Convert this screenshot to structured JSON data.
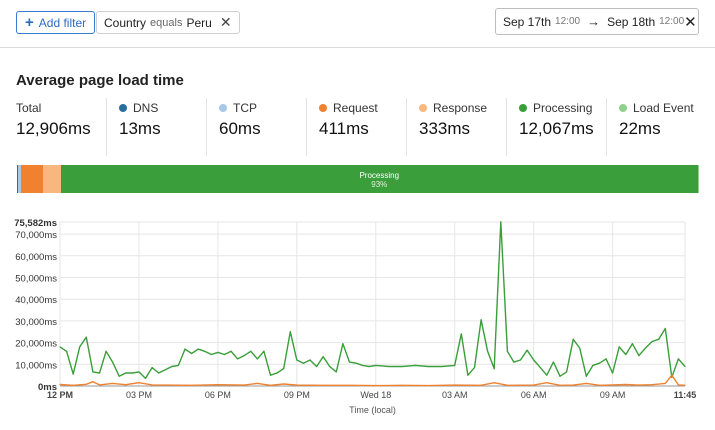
{
  "toolbar": {
    "add_filter_label": "Add filter",
    "filter_chip": {
      "field": "Country",
      "operator": "equals",
      "value": "Peru"
    },
    "date_range": {
      "start_date": "Sep 17th",
      "start_time": "12:00",
      "end_date": "Sep 18th",
      "end_time": "12:00"
    }
  },
  "section": {
    "title": "Average page load time"
  },
  "metrics": [
    {
      "label": "Total",
      "value": "12,906ms",
      "color": ""
    },
    {
      "label": "DNS",
      "value": "13ms",
      "color": "#2c6e9b"
    },
    {
      "label": "TCP",
      "value": "60ms",
      "color": "#a9c8e8"
    },
    {
      "label": "Request",
      "value": "411ms",
      "color": "#f0822f"
    },
    {
      "label": "Response",
      "value": "333ms",
      "color": "#f8b77f"
    },
    {
      "label": "Processing",
      "value": "12,067ms",
      "color": "#3a9e3a"
    },
    {
      "label": "Load Event",
      "value": "22ms",
      "color": "#8fd18a"
    }
  ],
  "breakdown_bar": {
    "segments": [
      {
        "name": "DNS",
        "fraction": 0.001,
        "color": "#2c6e9b"
      },
      {
        "name": "TCP",
        "fraction": 0.005,
        "color": "#a9c8e8"
      },
      {
        "name": "Request",
        "fraction": 0.032,
        "color": "#f0822f"
      },
      {
        "name": "Response",
        "fraction": 0.026,
        "color": "#f8b77f"
      },
      {
        "name": "Processing",
        "fraction": 0.935,
        "color": "#3a9e3a",
        "label": "Processing",
        "percent": "93%"
      },
      {
        "name": "Load Event",
        "fraction": 0.002,
        "color": "#8fd18a"
      }
    ]
  },
  "chart_data": {
    "type": "line",
    "xlabel": "Time (local)",
    "ylabel": "",
    "ylim": [
      0,
      75582
    ],
    "y_ticks": [
      "0ms",
      "10,000ms",
      "20,000ms",
      "30,000ms",
      "40,000ms",
      "50,000ms",
      "60,000ms",
      "70,000ms",
      "75,582ms"
    ],
    "y_tick_values": [
      0,
      10000,
      20000,
      30000,
      40000,
      50000,
      60000,
      70000,
      75582
    ],
    "x_ticks": [
      "12 PM",
      "03 PM",
      "06 PM",
      "09 PM",
      "Wed 18",
      "03 AM",
      "06 AM",
      "09 AM",
      "11:45"
    ],
    "x_tick_hours": [
      0,
      3,
      6,
      9,
      12,
      15,
      18,
      21,
      23.75
    ],
    "x_range_hours": [
      0,
      23.75
    ],
    "grid": true,
    "series": [
      {
        "color": "#3a9e3a",
        "x_hours": [
          0,
          0.25,
          0.5,
          0.75,
          1.0,
          1.25,
          1.5,
          1.75,
          2.0,
          2.25,
          2.5,
          2.75,
          3.0,
          3.25,
          3.5,
          3.75,
          4.0,
          4.25,
          4.5,
          4.75,
          5.0,
          5.25,
          5.5,
          5.75,
          6.0,
          6.25,
          6.5,
          6.75,
          7.0,
          7.25,
          7.5,
          7.75,
          8.0,
          8.25,
          8.5,
          8.75,
          9.0,
          9.25,
          9.5,
          9.75,
          10.0,
          10.25,
          10.5,
          10.75,
          11.0,
          11.25,
          11.5,
          11.75,
          12.0,
          12.5,
          13.0,
          13.5,
          14.0,
          14.5,
          15.0,
          15.25,
          15.5,
          15.75,
          16.0,
          16.25,
          16.5,
          16.75,
          17.0,
          17.25,
          17.5,
          17.75,
          18.0,
          18.25,
          18.5,
          18.75,
          19.0,
          19.25,
          19.5,
          19.75,
          20.0,
          20.25,
          20.5,
          20.75,
          21.0,
          21.25,
          21.5,
          21.75,
          22.0,
          22.25,
          22.5,
          22.75,
          23.0,
          23.25,
          23.5,
          23.75
        ],
        "values": [
          18000,
          16000,
          5500,
          18000,
          22500,
          6500,
          6000,
          16000,
          11000,
          4500,
          6000,
          6000,
          6500,
          3500,
          8500,
          6000,
          7500,
          9000,
          9500,
          17000,
          15000,
          17000,
          16000,
          14500,
          15500,
          14500,
          16000,
          12500,
          14000,
          16000,
          12500,
          16000,
          5000,
          6000,
          8000,
          25000,
          12000,
          10500,
          12000,
          9000,
          13500,
          9000,
          6500,
          19500,
          11000,
          10500,
          9500,
          9000,
          9500,
          9000,
          9000,
          9500,
          9000,
          9000,
          9500,
          24000,
          5000,
          8500,
          30500,
          16000,
          8000,
          75582,
          16000,
          11000,
          12000,
          16500,
          12000,
          8500,
          5000,
          11000,
          4500,
          6500,
          21500,
          17500,
          4500,
          9500,
          10500,
          12500,
          6000,
          18000,
          14500,
          19500,
          14000,
          17500,
          20500,
          21500,
          26500,
          4000,
          12500,
          9000
        ]
      },
      {
        "color": "#f0822f",
        "x_hours": [
          0,
          0.5,
          1.0,
          1.25,
          1.5,
          2.0,
          2.5,
          3.0,
          3.5,
          4.0,
          5.0,
          6.0,
          7.0,
          7.5,
          8.0,
          8.5,
          9.0,
          10.0,
          11.0,
          12.0,
          13.0,
          14.0,
          15.0,
          16.0,
          16.5,
          17.0,
          18.0,
          18.5,
          19.0,
          19.5,
          20.0,
          20.5,
          21.0,
          21.5,
          22.0,
          22.5,
          23.0,
          23.25,
          23.5,
          23.75
        ],
        "values": [
          700,
          300,
          800,
          2000,
          500,
          1200,
          600,
          1500,
          500,
          400,
          300,
          600,
          400,
          1200,
          300,
          900,
          400,
          300,
          300,
          200,
          300,
          200,
          400,
          300,
          1500,
          300,
          400,
          1500,
          300,
          400,
          1200,
          300,
          500,
          700,
          400,
          600,
          1200,
          5000,
          500,
          300
        ]
      }
    ]
  }
}
